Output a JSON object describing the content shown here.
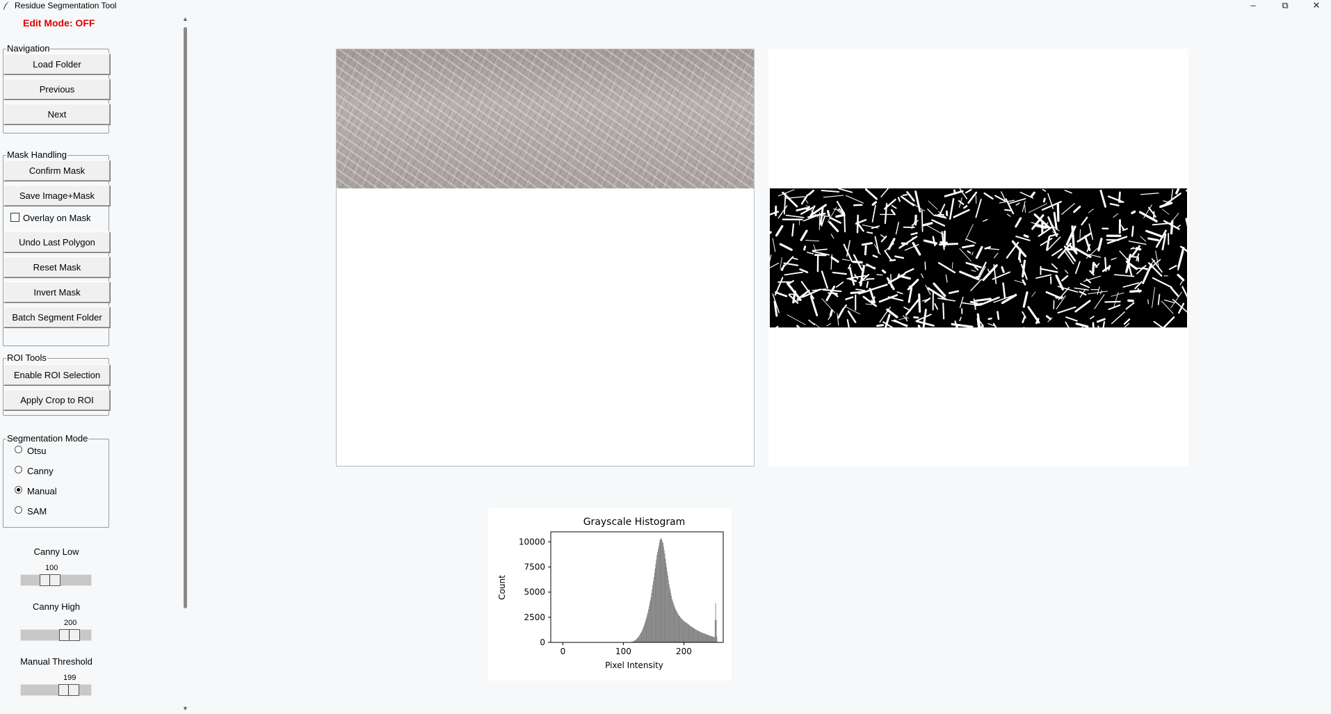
{
  "window": {
    "title": "Residue Segmentation Tool",
    "controls": [
      "minimize",
      "restore",
      "close"
    ]
  },
  "edit_mode": "Edit Mode: OFF",
  "groups": {
    "navigation": {
      "title": "Navigation",
      "buttons": [
        "Load Folder",
        "Previous",
        "Next"
      ]
    },
    "mask_handling": {
      "title": "Mask Handling",
      "confirm": "Confirm Mask",
      "save": "Save Image+Mask",
      "overlay": "Overlay on Mask",
      "overlay_checked": false,
      "undo": "Undo Last Polygon",
      "reset": "Reset Mask",
      "invert": "Invert Mask",
      "batch": "Batch Segment Folder"
    },
    "roi_tools": {
      "title": "ROI Tools",
      "buttons": [
        "Enable ROI Selection",
        "Apply Crop to ROI"
      ]
    },
    "segmentation_mode": {
      "title": "Segmentation Mode",
      "options": [
        "Otsu",
        "Canny",
        "Manual",
        "SAM"
      ],
      "selected": "Manual"
    }
  },
  "sliders": {
    "canny_low": {
      "label": "Canny Low",
      "value": "100"
    },
    "canny_high": {
      "label": "Canny High",
      "value": "200"
    },
    "manual_threshold": {
      "label": "Manual Threshold",
      "value": "199"
    }
  },
  "histogram": {
    "chart_data": {
      "type": "bar",
      "title": "Grayscale Histogram",
      "xlabel": "Pixel Intensity",
      "ylabel": "Count",
      "xlim": [
        -20,
        265
      ],
      "ylim": [
        0,
        11000
      ],
      "xticks": [
        0,
        100,
        200
      ],
      "yticks": [
        0,
        2500,
        5000,
        7500,
        10000
      ],
      "color": "#808080",
      "x": [
        110,
        115,
        120,
        125,
        130,
        135,
        140,
        145,
        150,
        155,
        160,
        162,
        165,
        168,
        170,
        175,
        180,
        185,
        190,
        195,
        200,
        205,
        210,
        215,
        220,
        225,
        230,
        235,
        240,
        245,
        250,
        252,
        254,
        255
      ],
      "values": [
        0,
        80,
        250,
        600,
        1100,
        1900,
        3000,
        4500,
        6500,
        8700,
        10200,
        10400,
        9900,
        8800,
        7900,
        5800,
        4300,
        3400,
        2800,
        2400,
        2100,
        1900,
        1650,
        1450,
        1250,
        1100,
        950,
        850,
        720,
        620,
        520,
        3900,
        600,
        0
      ]
    }
  },
  "colors": {
    "edit_mode": "#e00000",
    "background": "#f6f8fa",
    "button_face": "#f0f0f0"
  }
}
